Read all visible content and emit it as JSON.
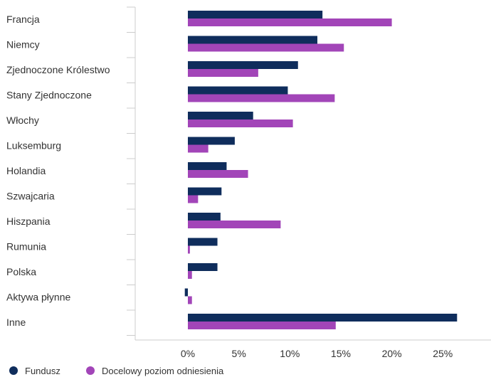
{
  "chart_data": {
    "type": "bar",
    "orientation": "horizontal",
    "categories": [
      "Francja",
      "Niemcy",
      "Zjednoczone Królestwo",
      "Stany Zjednoczone",
      "Włochy",
      "Luksemburg",
      "Holandia",
      "Szwajcaria",
      "Hiszpania",
      "Rumunia",
      "Polska",
      "Aktywa płynne",
      "Inne"
    ],
    "series": [
      {
        "name": "Fundusz",
        "color": "#0f2d5c",
        "values": [
          13.2,
          12.7,
          10.8,
          9.8,
          6.4,
          4.6,
          3.8,
          3.3,
          3.2,
          2.9,
          2.9,
          -0.3,
          26.4
        ]
      },
      {
        "name": "Docelowy poziom odniesienia",
        "color": "#a245b8",
        "values": [
          20.0,
          15.3,
          6.9,
          14.4,
          10.3,
          2.0,
          5.9,
          1.0,
          9.1,
          0.2,
          0.4,
          0.4,
          14.5
        ]
      }
    ],
    "x_ticks": [
      "0%",
      "5%",
      "10%",
      "15%",
      "20%",
      "25%"
    ],
    "xlim": [
      -5,
      30
    ],
    "legend": "bottom-left"
  }
}
